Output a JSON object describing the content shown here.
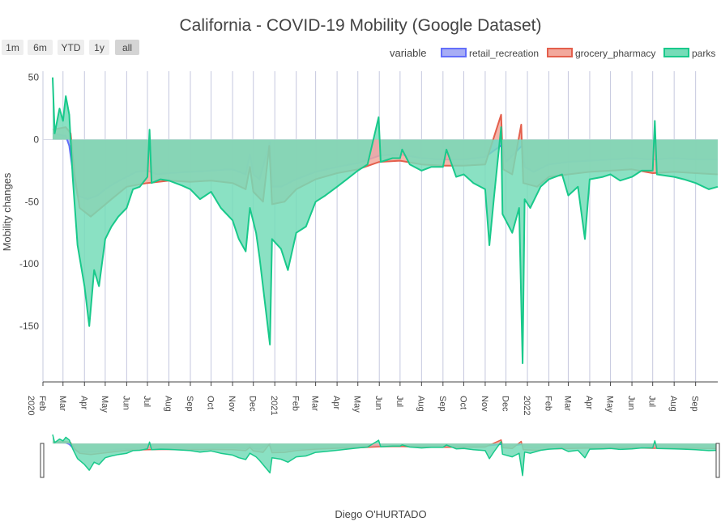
{
  "chart_data": {
    "type": "area",
    "title": "California - COVID-19 Mobility (Google Dataset)",
    "ylabel": "Mobility changes",
    "xlabel": "Diego O'HURTADO",
    "ylim": [
      -195,
      55
    ],
    "xrange": [
      "2020-02-01",
      "2022-10-03"
    ],
    "yticks": [
      50,
      0,
      -50,
      -100,
      -150
    ],
    "legend": {
      "title": "variable",
      "placement": "top-right"
    },
    "range_buttons": [
      "1m",
      "6m",
      "YTD",
      "1y",
      "all"
    ],
    "active_button": "all",
    "xticks": [
      {
        "date": "2020-02-01",
        "label": "Feb",
        "sub": "2020"
      },
      {
        "date": "2020-03-01",
        "label": "Mar"
      },
      {
        "date": "2020-04-01",
        "label": "Apr"
      },
      {
        "date": "2020-05-01",
        "label": "May"
      },
      {
        "date": "2020-06-01",
        "label": "Jun"
      },
      {
        "date": "2020-07-01",
        "label": "Jul"
      },
      {
        "date": "2020-08-01",
        "label": "Aug"
      },
      {
        "date": "2020-09-01",
        "label": "Sep"
      },
      {
        "date": "2020-10-01",
        "label": "Oct"
      },
      {
        "date": "2020-11-01",
        "label": "Nov"
      },
      {
        "date": "2020-12-01",
        "label": "Dec"
      },
      {
        "date": "2021-01-01",
        "label": "2021"
      },
      {
        "date": "2021-02-01",
        "label": "Feb"
      },
      {
        "date": "2021-03-01",
        "label": "Mar"
      },
      {
        "date": "2021-04-01",
        "label": "Apr"
      },
      {
        "date": "2021-05-01",
        "label": "May"
      },
      {
        "date": "2021-06-01",
        "label": "Jun"
      },
      {
        "date": "2021-07-01",
        "label": "Jul"
      },
      {
        "date": "2021-08-01",
        "label": "Aug"
      },
      {
        "date": "2021-09-01",
        "label": "Sep"
      },
      {
        "date": "2021-10-01",
        "label": "Oct"
      },
      {
        "date": "2021-11-01",
        "label": "Nov"
      },
      {
        "date": "2021-12-01",
        "label": "Dec"
      },
      {
        "date": "2022-01-01",
        "label": "2022"
      },
      {
        "date": "2022-02-01",
        "label": "Feb"
      },
      {
        "date": "2022-03-01",
        "label": "Mar"
      },
      {
        "date": "2022-04-01",
        "label": "Apr"
      },
      {
        "date": "2022-05-01",
        "label": "May"
      },
      {
        "date": "2022-06-01",
        "label": "Jun"
      },
      {
        "date": "2022-07-01",
        "label": "Jul"
      },
      {
        "date": "2022-08-01",
        "label": "Aug"
      },
      {
        "date": "2022-09-01",
        "label": "Sep"
      }
    ],
    "series": [
      {
        "name": "retail_recreation",
        "color": "#636efa",
        "fill": "#a7adf5",
        "points": [
          [
            "2020-02-15",
            5
          ],
          [
            "2020-03-05",
            3
          ],
          [
            "2020-03-10",
            -5
          ],
          [
            "2020-03-15",
            -25
          ],
          [
            "2020-03-22",
            -45
          ],
          [
            "2020-04-05",
            -48
          ],
          [
            "2020-04-20",
            -45
          ],
          [
            "2020-05-01",
            -40
          ],
          [
            "2020-05-15",
            -35
          ],
          [
            "2020-06-01",
            -30
          ],
          [
            "2020-06-15",
            -26
          ],
          [
            "2020-07-01",
            -25
          ],
          [
            "2020-07-15",
            -28
          ],
          [
            "2020-08-01",
            -27
          ],
          [
            "2020-09-01",
            -26
          ],
          [
            "2020-10-01",
            -25
          ],
          [
            "2020-11-01",
            -24
          ],
          [
            "2020-11-20",
            -28
          ],
          [
            "2020-11-26",
            -12
          ],
          [
            "2020-12-01",
            -28
          ],
          [
            "2020-12-10",
            -32
          ],
          [
            "2020-12-25",
            -2
          ],
          [
            "2020-12-28",
            -38
          ],
          [
            "2021-01-10",
            -38
          ],
          [
            "2021-02-01",
            -32
          ],
          [
            "2021-03-01",
            -26
          ],
          [
            "2021-04-01",
            -22
          ],
          [
            "2021-05-01",
            -19
          ],
          [
            "2021-06-01",
            -13
          ],
          [
            "2021-07-01",
            -12
          ],
          [
            "2021-08-01",
            -15
          ],
          [
            "2021-09-01",
            -16
          ],
          [
            "2021-10-01",
            -16
          ],
          [
            "2021-11-01",
            -14
          ],
          [
            "2021-11-26",
            -4
          ],
          [
            "2021-12-01",
            -18
          ],
          [
            "2021-12-24",
            -5
          ],
          [
            "2021-12-28",
            -22
          ],
          [
            "2022-01-10",
            -26
          ],
          [
            "2022-02-01",
            -20
          ],
          [
            "2022-03-01",
            -18
          ],
          [
            "2022-04-01",
            -17
          ],
          [
            "2022-05-01",
            -16
          ],
          [
            "2022-06-01",
            -15
          ],
          [
            "2022-07-01",
            -16
          ],
          [
            "2022-08-01",
            -15
          ],
          [
            "2022-09-01",
            -16
          ],
          [
            "2022-10-03",
            -16
          ]
        ]
      },
      {
        "name": "grocery_pharmacy",
        "color": "#e45f4c",
        "fill": "#f2a89c",
        "points": [
          [
            "2020-02-15",
            8
          ],
          [
            "2020-03-05",
            10
          ],
          [
            "2020-03-12",
            5
          ],
          [
            "2020-03-18",
            -30
          ],
          [
            "2020-03-25",
            -55
          ],
          [
            "2020-04-10",
            -62
          ],
          [
            "2020-04-25",
            -55
          ],
          [
            "2020-05-10",
            -48
          ],
          [
            "2020-06-01",
            -38
          ],
          [
            "2020-07-01",
            -35
          ],
          [
            "2020-08-01",
            -33
          ],
          [
            "2020-09-01",
            -34
          ],
          [
            "2020-10-01",
            -33
          ],
          [
            "2020-11-01",
            -35
          ],
          [
            "2020-11-20",
            -40
          ],
          [
            "2020-11-26",
            -22
          ],
          [
            "2020-12-01",
            -42
          ],
          [
            "2020-12-15",
            -50
          ],
          [
            "2020-12-24",
            -5
          ],
          [
            "2020-12-28",
            -52
          ],
          [
            "2021-01-15",
            -50
          ],
          [
            "2021-02-01",
            -40
          ],
          [
            "2021-03-01",
            -32
          ],
          [
            "2021-04-01",
            -27
          ],
          [
            "2021-05-01",
            -24
          ],
          [
            "2021-06-01",
            -18
          ],
          [
            "2021-07-01",
            -17
          ],
          [
            "2021-08-01",
            -20
          ],
          [
            "2021-09-01",
            -21
          ],
          [
            "2021-10-01",
            -21
          ],
          [
            "2021-11-01",
            -20
          ],
          [
            "2021-11-24",
            20
          ],
          [
            "2021-11-27",
            -24
          ],
          [
            "2021-12-10",
            -28
          ],
          [
            "2021-12-23",
            12
          ],
          [
            "2021-12-26",
            -35
          ],
          [
            "2022-01-15",
            -38
          ],
          [
            "2022-02-01",
            -30
          ],
          [
            "2022-03-01",
            -28
          ],
          [
            "2022-04-01",
            -26
          ],
          [
            "2022-05-01",
            -25
          ],
          [
            "2022-06-01",
            -24
          ],
          [
            "2022-07-01",
            -27
          ],
          [
            "2022-08-01",
            -26
          ],
          [
            "2022-09-01",
            -27
          ],
          [
            "2022-10-03",
            -28
          ]
        ]
      },
      {
        "name": "parks",
        "color": "#19c98b",
        "fill": "#76dcb8",
        "points": [
          [
            "2020-02-15",
            50
          ],
          [
            "2020-02-18",
            5
          ],
          [
            "2020-02-25",
            25
          ],
          [
            "2020-03-01",
            15
          ],
          [
            "2020-03-05",
            35
          ],
          [
            "2020-03-10",
            20
          ],
          [
            "2020-03-15",
            -30
          ],
          [
            "2020-03-22",
            -85
          ],
          [
            "2020-04-01",
            -118
          ],
          [
            "2020-04-08",
            -150
          ],
          [
            "2020-04-15",
            -105
          ],
          [
            "2020-04-22",
            -118
          ],
          [
            "2020-05-01",
            -80
          ],
          [
            "2020-05-10",
            -70
          ],
          [
            "2020-05-20",
            -62
          ],
          [
            "2020-06-01",
            -55
          ],
          [
            "2020-06-10",
            -40
          ],
          [
            "2020-06-20",
            -38
          ],
          [
            "2020-07-01",
            -30
          ],
          [
            "2020-07-04",
            8
          ],
          [
            "2020-07-07",
            -35
          ],
          [
            "2020-07-20",
            -32
          ],
          [
            "2020-08-01",
            -33
          ],
          [
            "2020-08-20",
            -37
          ],
          [
            "2020-09-01",
            -40
          ],
          [
            "2020-09-15",
            -48
          ],
          [
            "2020-10-01",
            -42
          ],
          [
            "2020-10-15",
            -55
          ],
          [
            "2020-11-01",
            -65
          ],
          [
            "2020-11-10",
            -80
          ],
          [
            "2020-11-20",
            -90
          ],
          [
            "2020-11-26",
            -55
          ],
          [
            "2020-12-05",
            -75
          ],
          [
            "2020-12-10",
            -95
          ],
          [
            "2020-12-25",
            -165
          ],
          [
            "2020-12-28",
            -80
          ],
          [
            "2021-01-10",
            -88
          ],
          [
            "2021-01-20",
            -105
          ],
          [
            "2021-02-01",
            -75
          ],
          [
            "2021-02-15",
            -70
          ],
          [
            "2021-03-01",
            -50
          ],
          [
            "2021-03-15",
            -45
          ],
          [
            "2021-04-01",
            -38
          ],
          [
            "2021-04-15",
            -32
          ],
          [
            "2021-05-01",
            -25
          ],
          [
            "2021-05-15",
            -20
          ],
          [
            "2021-05-31",
            18
          ],
          [
            "2021-06-03",
            -18
          ],
          [
            "2021-06-20",
            -15
          ],
          [
            "2021-07-01",
            -15
          ],
          [
            "2021-07-04",
            -8
          ],
          [
            "2021-07-15",
            -20
          ],
          [
            "2021-08-01",
            -25
          ],
          [
            "2021-08-15",
            -22
          ],
          [
            "2021-09-01",
            -22
          ],
          [
            "2021-09-06",
            -8
          ],
          [
            "2021-09-20",
            -30
          ],
          [
            "2021-10-01",
            -28
          ],
          [
            "2021-10-15",
            -35
          ],
          [
            "2021-11-01",
            -40
          ],
          [
            "2021-11-07",
            -85
          ],
          [
            "2021-11-14",
            -45
          ],
          [
            "2021-11-24",
            10
          ],
          [
            "2021-11-26",
            -60
          ],
          [
            "2021-12-10",
            -75
          ],
          [
            "2021-12-20",
            -55
          ],
          [
            "2021-12-25",
            -180
          ],
          [
            "2021-12-28",
            -48
          ],
          [
            "2022-01-05",
            -55
          ],
          [
            "2022-01-20",
            -38
          ],
          [
            "2022-02-01",
            -32
          ],
          [
            "2022-02-20",
            -28
          ],
          [
            "2022-03-01",
            -45
          ],
          [
            "2022-03-15",
            -38
          ],
          [
            "2022-03-25",
            -80
          ],
          [
            "2022-04-01",
            -32
          ],
          [
            "2022-04-20",
            -30
          ],
          [
            "2022-05-01",
            -28
          ],
          [
            "2022-05-15",
            -33
          ],
          [
            "2022-06-01",
            -30
          ],
          [
            "2022-06-15",
            -25
          ],
          [
            "2022-07-01",
            -25
          ],
          [
            "2022-07-04",
            15
          ],
          [
            "2022-07-07",
            -28
          ],
          [
            "2022-08-01",
            -30
          ],
          [
            "2022-08-15",
            -32
          ],
          [
            "2022-09-01",
            -35
          ],
          [
            "2022-09-20",
            -40
          ],
          [
            "2022-10-03",
            -38
          ]
        ]
      }
    ]
  }
}
